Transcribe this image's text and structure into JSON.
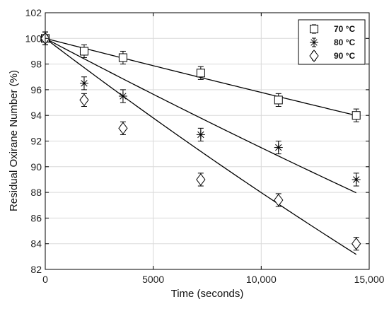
{
  "chart_data": {
    "type": "scatter",
    "xlabel": "Time (seconds)",
    "ylabel": "Residual Oxirane Number (%)",
    "xlim": [
      0,
      15000
    ],
    "ylim": [
      82,
      102
    ],
    "x_ticks": [
      0,
      5000,
      10000,
      15000
    ],
    "x_tick_labels": [
      "0",
      "5000",
      "10,000",
      "15,000"
    ],
    "y_ticks": [
      82,
      84,
      86,
      88,
      90,
      92,
      94,
      96,
      98,
      100,
      102
    ],
    "y_tick_labels": [
      "82",
      "84",
      "86",
      "88",
      "90",
      "92",
      "94",
      "96",
      "98",
      "100",
      "102"
    ],
    "grid": true,
    "legend_position": "top-right",
    "series": [
      {
        "name": "70 °C",
        "marker": "square",
        "x": [
          0,
          1800,
          3600,
          7200,
          10800,
          14400
        ],
        "y": [
          100.0,
          99.0,
          98.5,
          97.3,
          95.2,
          94.0
        ],
        "err": [
          0.5,
          0.5,
          0.5,
          0.5,
          0.5,
          0.5
        ],
        "fit_rate": 4.3e-06
      },
      {
        "name": "80 °C",
        "marker": "asterisk",
        "x": [
          0,
          1800,
          3600,
          7200,
          10800,
          14400
        ],
        "y": [
          100.0,
          96.5,
          95.5,
          92.5,
          91.5,
          89.0
        ],
        "err": [
          0.5,
          0.5,
          0.5,
          0.5,
          0.5,
          0.5
        ],
        "fit_rate": 8.9e-06
      },
      {
        "name": "90 °C",
        "marker": "diamond",
        "x": [
          0,
          1800,
          3600,
          7200,
          10800,
          14400
        ],
        "y": [
          100.0,
          95.2,
          93.0,
          89.0,
          87.4,
          84.0
        ],
        "err": [
          0.5,
          0.5,
          0.5,
          0.5,
          0.5,
          0.5
        ],
        "fit_rate": 1.28e-05
      }
    ]
  }
}
